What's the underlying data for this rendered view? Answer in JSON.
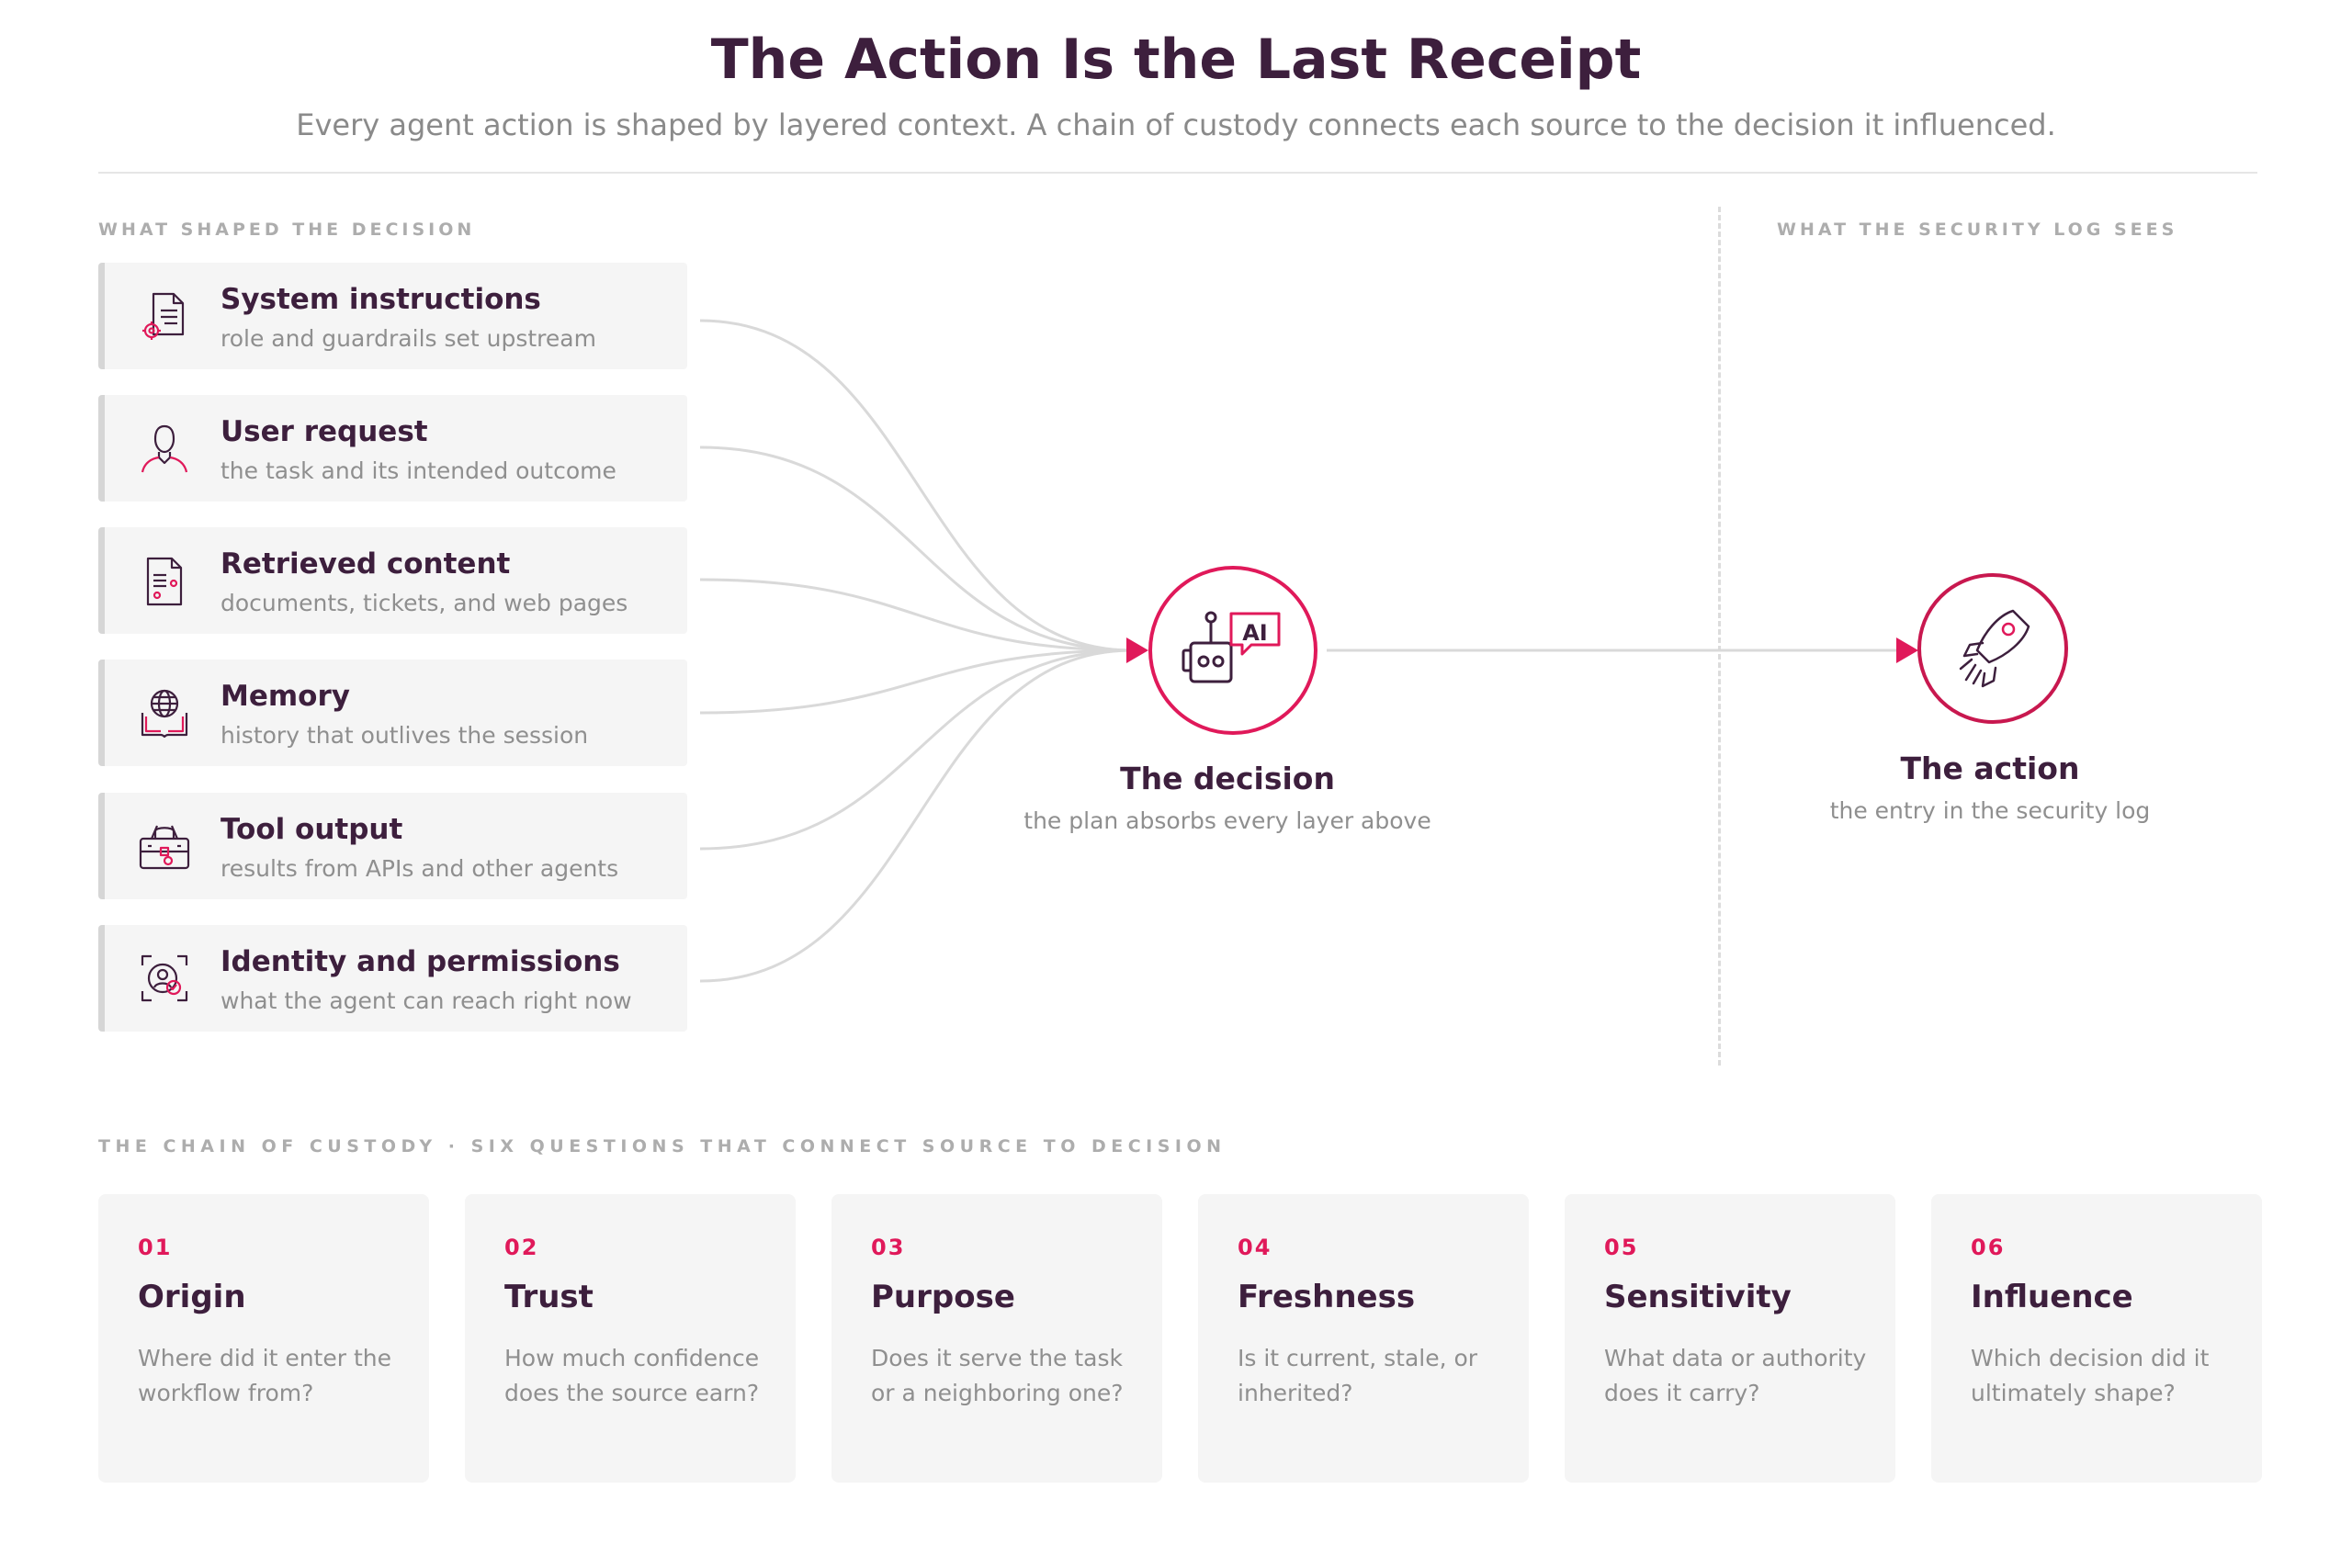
{
  "header": {
    "title": "The Action Is the Last Receipt",
    "subtitle": "Every agent action is shaped by layered context. A chain of custody connects each source to the decision it influenced."
  },
  "kickers": {
    "left": "WHAT SHAPED THE DECISION",
    "right": "WHAT THE SECURITY LOG SEES",
    "chain": "THE CHAIN OF CUSTODY · SIX QUESTIONS THAT CONNECT SOURCE TO DECISION"
  },
  "sources": [
    {
      "title": "System instructions",
      "desc": "role and guardrails set upstream",
      "icon": "document-gear-icon"
    },
    {
      "title": "User request",
      "desc": "the task and its intended outcome",
      "icon": "person-icon"
    },
    {
      "title": "Retrieved content",
      "desc": "documents, tickets, and web pages",
      "icon": "document-list-icon"
    },
    {
      "title": "Memory",
      "desc": "history that outlives the session",
      "icon": "globe-book-icon"
    },
    {
      "title": "Tool output",
      "desc": "results from APIs and other agents",
      "icon": "toolbox-icon"
    },
    {
      "title": "Identity and permissions",
      "desc": "what the agent can reach right now",
      "icon": "identity-scan-icon"
    }
  ],
  "decision": {
    "title": "The decision",
    "desc": "the plan absorbs every layer above",
    "icon": "ai-robot-icon",
    "badge": "AI"
  },
  "action": {
    "title": "The action",
    "desc": "the entry in the security log",
    "icon": "rocket-icon"
  },
  "questions": [
    {
      "num": "01",
      "title": "Origin",
      "desc": "Where did it enter the workflow from?"
    },
    {
      "num": "02",
      "title": "Trust",
      "desc": "How much confidence does the source earn?"
    },
    {
      "num": "03",
      "title": "Purpose",
      "desc": "Does it serve the task or a neighboring one?"
    },
    {
      "num": "04",
      "title": "Freshness",
      "desc": "Is it current, stale, or inherited?"
    },
    {
      "num": "05",
      "title": "Sensitivity",
      "desc": "What data or authority does it carry?"
    },
    {
      "num": "06",
      "title": "Influence",
      "desc": "Which decision did it ultimately shape?"
    }
  ],
  "colors": {
    "accent": "#e0195a",
    "heading": "#3d1f3d",
    "muted": "#8f8f8f",
    "card": "#f5f5f5",
    "connector": "#d9d9d9"
  }
}
